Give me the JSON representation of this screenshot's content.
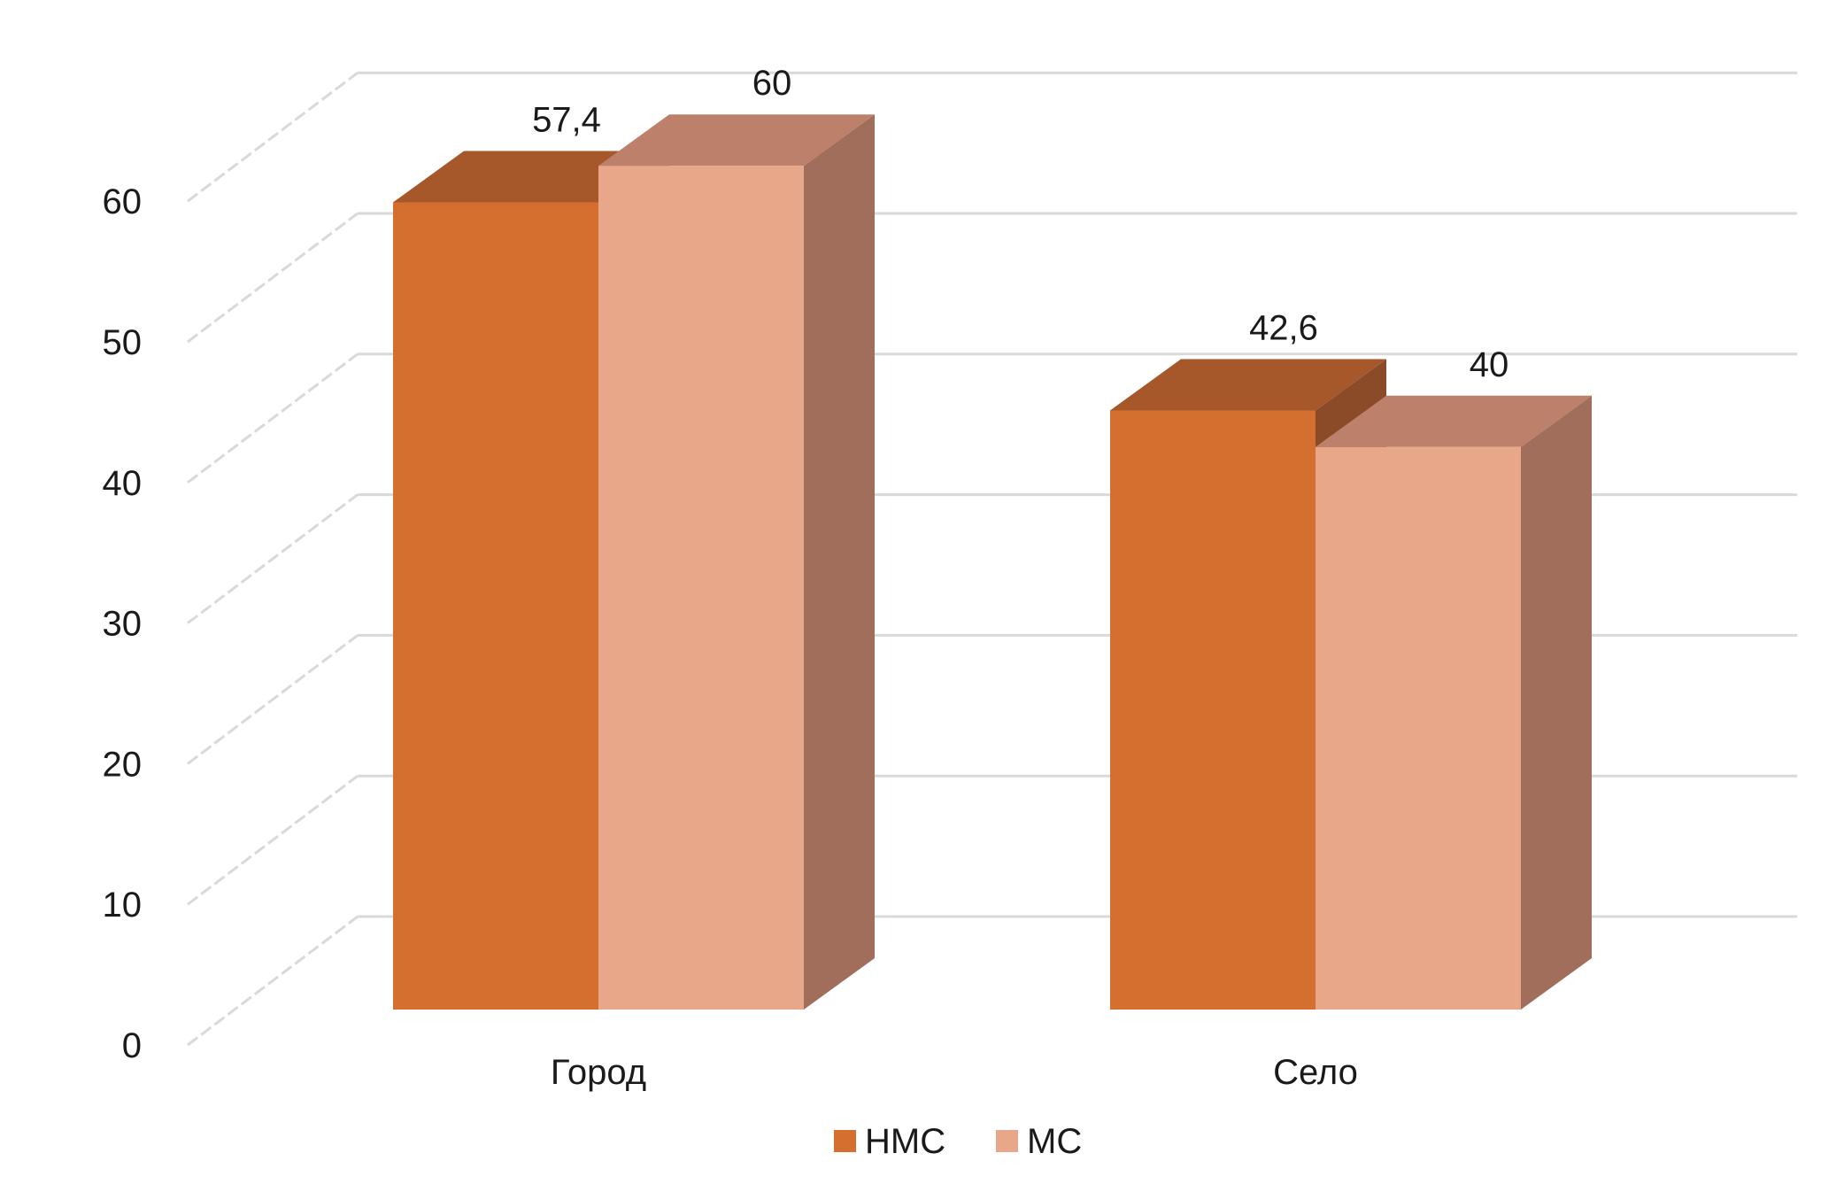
{
  "chart_data": {
    "type": "bar",
    "style": "3d-clustered-column",
    "categories": [
      "Город",
      "Село"
    ],
    "series": [
      {
        "name": "НМС",
        "values": [
          57.4,
          42.6
        ],
        "labels": [
          "57,4",
          "42,6"
        ],
        "color": "#D46F2F",
        "top_color": "#A6582B",
        "side_color": "#8B4A28"
      },
      {
        "name": "МС",
        "values": [
          60,
          40
        ],
        "labels": [
          "60",
          "40"
        ],
        "color": "#E9A78A",
        "top_color": "#BD806A",
        "side_color": "#A06E5A"
      }
    ],
    "yticks": [
      "0",
      "10",
      "20",
      "30",
      "40",
      "50",
      "60"
    ],
    "ylim": [
      0,
      60
    ],
    "grid": true,
    "grid_color": "#D9D9D9",
    "legend": "bottom",
    "title": "",
    "xlabel": "",
    "ylabel": ""
  }
}
